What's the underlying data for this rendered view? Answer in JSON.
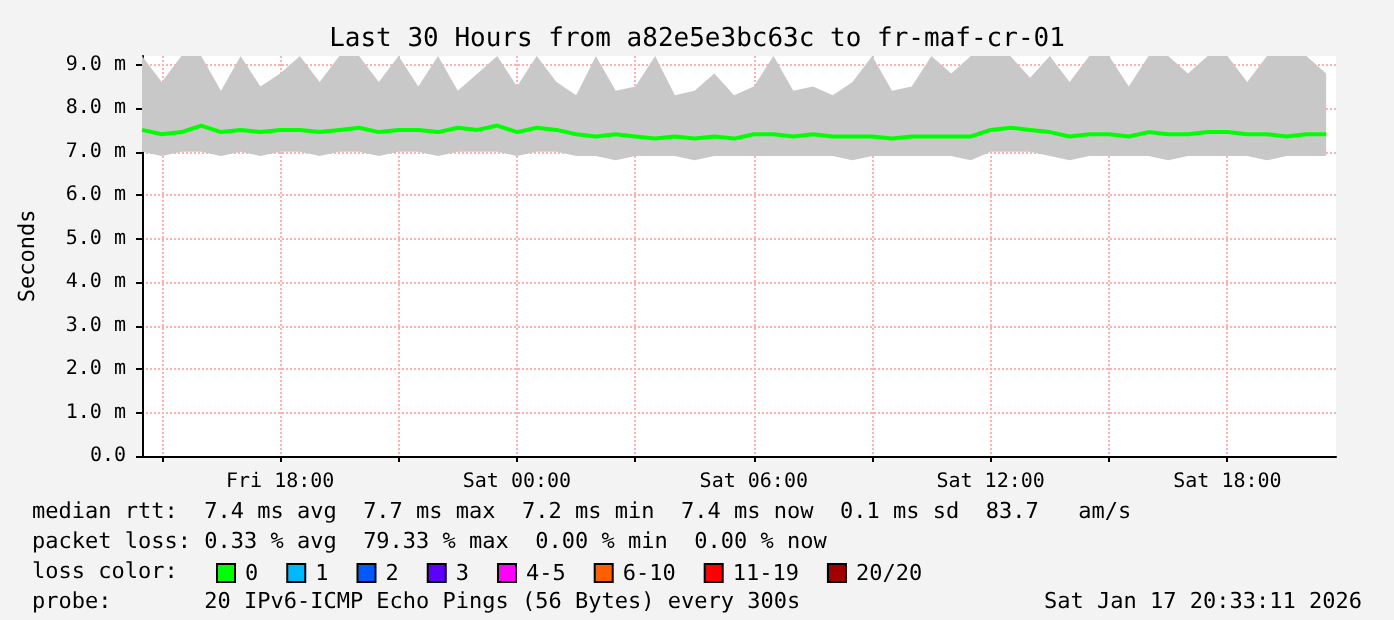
{
  "chart_data": {
    "type": "line",
    "title": "Last 30 Hours from a82e5e3bc63c to fr-maf-cr-01",
    "ylabel": "Seconds",
    "legend_title": "loss color:",
    "legend": "bottom",
    "grid": true,
    "marker": "none",
    "line_style": "solid",
    "x": [
      "2026-01-16T14:30",
      "2026-01-16T15:00",
      "2026-01-16T15:30",
      "2026-01-16T16:00",
      "2026-01-16T16:30",
      "2026-01-16T17:00",
      "2026-01-16T17:30",
      "2026-01-16T18:00",
      "2026-01-16T18:30",
      "2026-01-16T19:00",
      "2026-01-16T19:30",
      "2026-01-16T20:00",
      "2026-01-16T20:30",
      "2026-01-16T21:00",
      "2026-01-16T21:30",
      "2026-01-16T22:00",
      "2026-01-16T22:30",
      "2026-01-16T23:00",
      "2026-01-16T23:30",
      "2026-01-17T00:00",
      "2026-01-17T00:30",
      "2026-01-17T01:00",
      "2026-01-17T01:30",
      "2026-01-17T02:00",
      "2026-01-17T02:30",
      "2026-01-17T03:00",
      "2026-01-17T03:30",
      "2026-01-17T04:00",
      "2026-01-17T04:30",
      "2026-01-17T05:00",
      "2026-01-17T05:30",
      "2026-01-17T06:00",
      "2026-01-17T06:30",
      "2026-01-17T07:00",
      "2026-01-17T07:30",
      "2026-01-17T08:00",
      "2026-01-17T08:30",
      "2026-01-17T09:00",
      "2026-01-17T09:30",
      "2026-01-17T10:00",
      "2026-01-17T10:30",
      "2026-01-17T11:00",
      "2026-01-17T11:30",
      "2026-01-17T12:00",
      "2026-01-17T12:30",
      "2026-01-17T13:00",
      "2026-01-17T13:30",
      "2026-01-17T14:00",
      "2026-01-17T14:30",
      "2026-01-17T15:00",
      "2026-01-17T15:30",
      "2026-01-17T16:00",
      "2026-01-17T16:30",
      "2026-01-17T17:00",
      "2026-01-17T17:30",
      "2026-01-17T18:00",
      "2026-01-17T18:30",
      "2026-01-17T19:00",
      "2026-01-17T19:30",
      "2026-01-17T20:00",
      "2026-01-17T20:30"
    ],
    "series": [
      {
        "name": "0",
        "color": "#00ff00",
        "values": [
          7.5,
          7.4,
          7.45,
          7.6,
          7.45,
          7.5,
          7.45,
          7.5,
          7.5,
          7.45,
          7.5,
          7.55,
          7.45,
          7.5,
          7.5,
          7.45,
          7.55,
          7.5,
          7.6,
          7.45,
          7.55,
          7.5,
          7.4,
          7.35,
          7.4,
          7.35,
          7.3,
          7.35,
          7.3,
          7.35,
          7.3,
          7.4,
          7.4,
          7.35,
          7.4,
          7.35,
          7.35,
          7.35,
          7.3,
          7.35,
          7.35,
          7.35,
          7.35,
          7.5,
          7.55,
          7.5,
          7.45,
          7.35,
          7.4,
          7.4,
          7.35,
          7.45,
          7.4,
          7.4,
          7.45,
          7.45,
          7.4,
          7.4,
          7.35,
          7.4,
          7.4
        ],
        "lower": [
          7.0,
          6.9,
          7.0,
          7.0,
          6.9,
          7.0,
          6.9,
          7.0,
          7.0,
          6.9,
          7.0,
          7.0,
          6.9,
          7.0,
          7.0,
          6.9,
          7.0,
          7.0,
          7.0,
          6.9,
          7.0,
          7.0,
          6.9,
          6.9,
          6.8,
          6.9,
          6.9,
          6.9,
          6.8,
          6.9,
          6.9,
          6.9,
          6.9,
          6.9,
          6.9,
          6.9,
          6.8,
          6.9,
          6.9,
          6.9,
          6.9,
          6.9,
          6.8,
          7.0,
          7.0,
          7.0,
          6.9,
          6.8,
          6.9,
          6.9,
          6.9,
          6.9,
          6.8,
          6.9,
          6.9,
          6.9,
          6.9,
          6.8,
          6.9,
          6.9,
          6.9
        ],
        "upper": [
          9.2,
          8.6,
          9.2,
          9.2,
          8.4,
          9.2,
          8.5,
          8.8,
          9.2,
          8.6,
          9.2,
          9.2,
          8.6,
          9.2,
          8.5,
          9.2,
          8.4,
          8.8,
          9.2,
          8.5,
          9.2,
          8.6,
          8.3,
          9.2,
          8.4,
          8.5,
          9.2,
          8.3,
          8.4,
          8.8,
          8.3,
          8.5,
          9.2,
          8.4,
          8.5,
          8.3,
          8.6,
          9.2,
          8.4,
          8.5,
          9.2,
          8.8,
          9.2,
          9.2,
          9.2,
          8.7,
          9.2,
          8.6,
          9.2,
          9.2,
          8.5,
          9.2,
          9.2,
          8.8,
          9.2,
          9.2,
          8.6,
          9.2,
          9.2,
          9.2,
          8.8
        ]
      },
      {
        "name": "1",
        "color": "#00b8ff",
        "values": [
          null,
          null,
          null,
          null,
          null,
          null,
          null,
          null,
          null,
          null,
          null,
          null,
          null,
          null,
          null,
          null,
          null,
          null,
          null,
          null,
          null,
          null,
          null,
          null,
          null,
          null,
          null,
          null,
          null,
          null,
          null,
          null,
          null,
          null,
          null,
          null,
          null,
          null,
          null,
          null,
          null,
          null,
          null,
          null,
          null,
          null,
          null,
          null,
          null,
          null,
          null,
          null,
          null,
          null,
          null,
          null,
          null,
          null,
          null,
          null,
          null
        ]
      },
      {
        "name": "2",
        "color": "#0059ff",
        "values": [
          null,
          null,
          null,
          null,
          null,
          null,
          null,
          null,
          null,
          null,
          null,
          null,
          null,
          null,
          null,
          null,
          null,
          null,
          null,
          null,
          null,
          null,
          null,
          null,
          null,
          null,
          null,
          null,
          null,
          null,
          null,
          null,
          null,
          null,
          null,
          null,
          null,
          null,
          null,
          null,
          null,
          null,
          null,
          null,
          null,
          null,
          null,
          null,
          null,
          null,
          null,
          null,
          null,
          null,
          null,
          null,
          null,
          null,
          null,
          null,
          null
        ]
      },
      {
        "name": "3",
        "color": "#5e00ff",
        "values": [
          null,
          null,
          null,
          null,
          null,
          null,
          null,
          null,
          null,
          null,
          null,
          null,
          null,
          null,
          null,
          null,
          null,
          null,
          null,
          null,
          null,
          null,
          null,
          null,
          null,
          null,
          null,
          null,
          null,
          null,
          null,
          null,
          null,
          null,
          null,
          null,
          null,
          null,
          null,
          null,
          null,
          null,
          null,
          null,
          null,
          null,
          null,
          null,
          null,
          null,
          null,
          null,
          null,
          null,
          null,
          null,
          null,
          null,
          null,
          null,
          null
        ]
      },
      {
        "name": "4-5",
        "color": "#ff00ff",
        "values": [
          null,
          null,
          null,
          null,
          null,
          null,
          null,
          null,
          null,
          null,
          null,
          null,
          null,
          null,
          null,
          null,
          null,
          null,
          null,
          null,
          null,
          null,
          null,
          null,
          null,
          null,
          null,
          null,
          null,
          null,
          null,
          null,
          null,
          null,
          null,
          null,
          null,
          null,
          null,
          null,
          null,
          null,
          null,
          null,
          null,
          null,
          null,
          null,
          null,
          null,
          null,
          null,
          null,
          null,
          null,
          null,
          null,
          null,
          null,
          null,
          null
        ]
      },
      {
        "name": "6-10",
        "color": "#ff5e00",
        "values": [
          null,
          null,
          null,
          null,
          null,
          null,
          null,
          null,
          null,
          null,
          null,
          null,
          null,
          null,
          null,
          null,
          null,
          null,
          null,
          null,
          null,
          null,
          null,
          null,
          null,
          null,
          null,
          null,
          null,
          null,
          null,
          null,
          null,
          null,
          null,
          null,
          null,
          null,
          null,
          null,
          null,
          null,
          null,
          null,
          null,
          null,
          null,
          null,
          null,
          null,
          null,
          null,
          null,
          null,
          null,
          null,
          null,
          null,
          null,
          null,
          null
        ]
      },
      {
        "name": "11-19",
        "color": "#ff0000",
        "values": [
          null,
          null,
          null,
          null,
          null,
          null,
          null,
          null,
          null,
          null,
          null,
          null,
          null,
          null,
          null,
          null,
          null,
          null,
          null,
          null,
          null,
          null,
          null,
          null,
          null,
          null,
          null,
          null,
          null,
          null,
          null,
          null,
          null,
          null,
          null,
          null,
          null,
          null,
          null,
          null,
          null,
          null,
          null,
          null,
          null,
          null,
          null,
          null,
          null,
          null,
          null,
          null,
          null,
          null,
          null,
          null,
          null,
          null,
          null,
          null,
          null
        ]
      },
      {
        "name": "20/20",
        "color": "#a10000",
        "values": [
          null,
          null,
          null,
          null,
          null,
          null,
          null,
          null,
          null,
          null,
          null,
          null,
          null,
          null,
          null,
          null,
          null,
          null,
          null,
          null,
          null,
          null,
          null,
          null,
          null,
          null,
          null,
          null,
          null,
          null,
          null,
          null,
          null,
          null,
          null,
          null,
          null,
          null,
          null,
          null,
          null,
          null,
          null,
          null,
          null,
          null,
          null,
          null,
          null,
          null,
          null,
          null,
          null,
          null,
          null,
          null,
          null,
          null,
          null,
          null,
          null
        ]
      }
    ],
    "xlim": [
      "2026-01-16T14:30",
      "2026-01-17T20:45"
    ],
    "xticks": [
      {
        "value": "2026-01-16T15:00",
        "label": null
      },
      {
        "value": "2026-01-16T18:00",
        "label": "Fri 18:00"
      },
      {
        "value": "2026-01-16T21:00",
        "label": null
      },
      {
        "value": "2026-01-17T00:00",
        "label": "Sat 00:00"
      },
      {
        "value": "2026-01-17T03:00",
        "label": null
      },
      {
        "value": "2026-01-17T06:00",
        "label": "Sat 06:00"
      },
      {
        "value": "2026-01-17T09:00",
        "label": null
      },
      {
        "value": "2026-01-17T12:00",
        "label": "Sat 12:00"
      },
      {
        "value": "2026-01-17T15:00",
        "label": null
      },
      {
        "value": "2026-01-17T18:00",
        "label": "Sat 18:00"
      }
    ],
    "ylim": [
      0,
      9.2
    ],
    "yticks": [
      {
        "value": 0,
        "label": "0.0"
      },
      {
        "value": 1,
        "label": "1.0 m"
      },
      {
        "value": 2,
        "label": "2.0 m"
      },
      {
        "value": 3,
        "label": "3.0 m"
      },
      {
        "value": 4,
        "label": "4.0 m"
      },
      {
        "value": 5,
        "label": "5.0 m"
      },
      {
        "value": 6,
        "label": "6.0 m"
      },
      {
        "value": 7,
        "label": "7.0 m"
      },
      {
        "value": 8,
        "label": "8.0 m"
      },
      {
        "value": 9,
        "label": "9.0 m"
      }
    ],
    "annotations": [
      "median rtt:  7.4 ms avg  7.7 ms max  7.2 ms min  7.4 ms now  0.1 ms sd  83.7   am/s",
      "packet loss: 0.33 % avg  79.33 % max  0.00 % min  0.00 % now",
      "probe:       20 IPv6-ICMP Echo Pings (56 Bytes) every 300s",
      "Sat Jan 17 20:33:11 2026"
    ]
  }
}
